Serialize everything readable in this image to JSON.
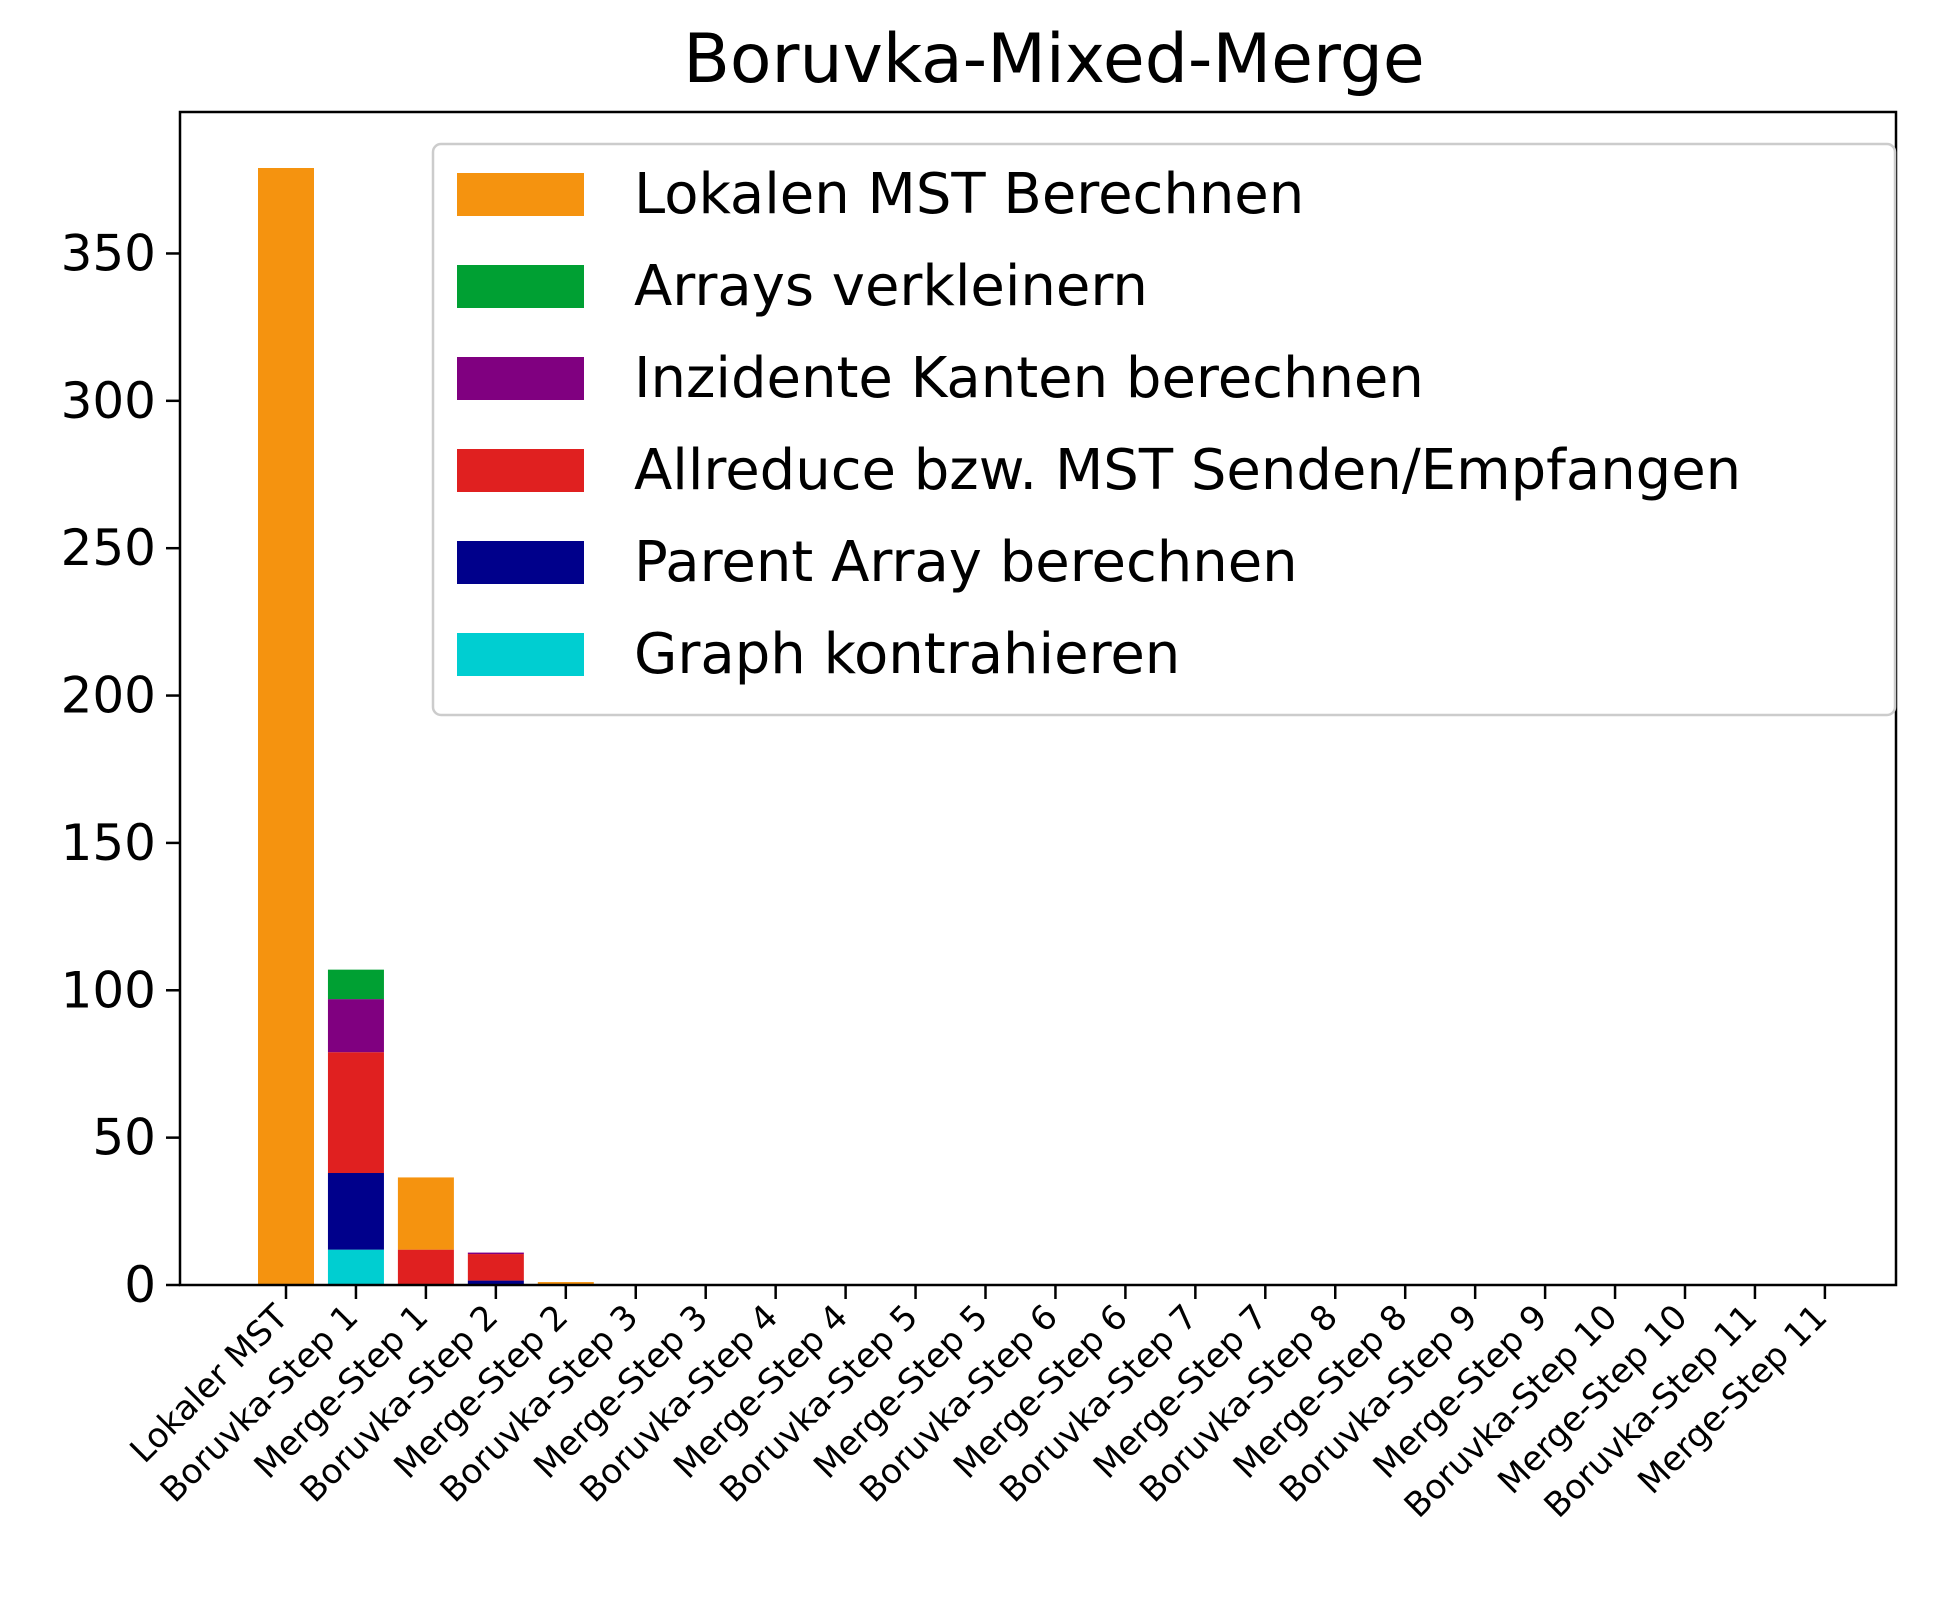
{
  "chart_data": {
    "type": "bar",
    "stacked": true,
    "title": "Boruvka-Mixed-Merge",
    "xlabel": "",
    "ylabel": "",
    "ylim": [
      0,
      398
    ],
    "yticks": [
      0,
      50,
      100,
      150,
      200,
      250,
      300,
      350
    ],
    "grid": false,
    "legend_position": "upper-right",
    "categories": [
      "Lokaler MST",
      "Boruvka-Step 1",
      "Merge-Step 1",
      "Boruvka-Step 2",
      "Merge-Step 2",
      "Boruvka-Step 3",
      "Merge-Step 3",
      "Boruvka-Step 4",
      "Merge-Step 4",
      "Boruvka-Step 5",
      "Merge-Step 5",
      "Boruvka-Step 6",
      "Merge-Step 6",
      "Boruvka-Step 7",
      "Merge-Step 7",
      "Boruvka-Step 8",
      "Merge-Step 8",
      "Boruvka-Step 9",
      "Merge-Step 9",
      "Boruvka-Step 10",
      "Merge-Step 10",
      "Boruvka-Step 11",
      "Merge-Step 11"
    ],
    "series": [
      {
        "name": "Graph kontrahieren",
        "color": "#00CED1",
        "values": [
          0,
          12,
          0,
          0,
          0,
          0,
          0,
          0,
          0,
          0,
          0,
          0,
          0,
          0,
          0,
          0,
          0,
          0,
          0,
          0,
          0,
          0,
          0
        ]
      },
      {
        "name": "Parent Array berechnen",
        "color": "#00008B",
        "values": [
          0,
          26,
          0,
          1.5,
          0,
          0,
          0,
          0,
          0,
          0,
          0,
          0,
          0,
          0,
          0,
          0,
          0,
          0,
          0,
          0,
          0,
          0,
          0
        ]
      },
      {
        "name": "Allreduce bzw. MST Senden/Empfangen",
        "color": "#E02020",
        "values": [
          0,
          41,
          12,
          9,
          0.3,
          0,
          0,
          0,
          0,
          0,
          0,
          0,
          0,
          0,
          0,
          0,
          0,
          0,
          0,
          0,
          0,
          0,
          0
        ]
      },
      {
        "name": "Inzidente Kanten berechnen",
        "color": "#800080",
        "values": [
          0,
          18,
          0,
          0.5,
          0,
          0,
          0,
          0,
          0,
          0,
          0,
          0,
          0,
          0,
          0,
          0,
          0,
          0,
          0,
          0,
          0,
          0,
          0
        ]
      },
      {
        "name": "Arrays verkleinern",
        "color": "#00A033",
        "values": [
          0,
          10,
          0,
          0,
          0,
          0,
          0,
          0,
          0,
          0,
          0,
          0,
          0,
          0,
          0,
          0,
          0,
          0,
          0,
          0,
          0,
          0,
          0
        ]
      },
      {
        "name": "Lokalen MST Berechnen",
        "color": "#F5930F",
        "values": [
          379,
          0,
          24.5,
          0,
          0.7,
          0,
          0,
          0,
          0,
          0,
          0,
          0,
          0,
          0,
          0,
          0,
          0,
          0,
          0,
          0,
          0,
          0,
          0
        ]
      }
    ],
    "legend_order": [
      "Lokalen MST Berechnen",
      "Arrays verkleinern",
      "Inzidente Kanten berechnen",
      "Allreduce bzw. MST Senden/Empfangen",
      "Parent Array berechnen",
      "Graph kontrahieren"
    ]
  }
}
